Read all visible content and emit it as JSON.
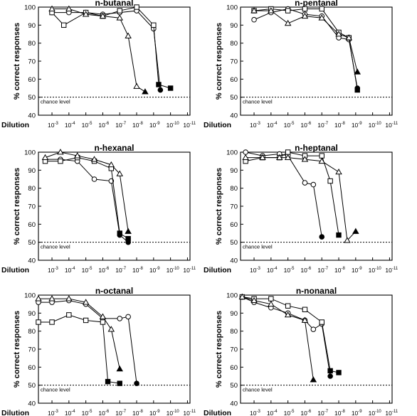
{
  "xaxis_label": "Dilution",
  "yaxis_label": "% correct responses",
  "chance_label": "chance level",
  "chart_data": [
    {
      "type": "line",
      "title": "n-butanal",
      "xlabel": "Dilution",
      "ylabel": "% correct responses",
      "ylim": [
        40,
        100
      ],
      "yticks": [
        "40",
        "50",
        "60",
        "70",
        "80",
        "90",
        "100"
      ],
      "x_ticks": [
        3,
        4,
        5,
        6,
        7,
        8,
        9,
        10,
        11
      ],
      "x_tick_base": "10",
      "x_scale": "log (dilution 10^-n)",
      "chance_level": 50,
      "series": [
        {
          "marker": "circle",
          "x": [
            3,
            4,
            5,
            6,
            7,
            8,
            9,
            9.4
          ],
          "y": [
            97,
            97,
            97,
            96,
            97,
            98,
            88,
            54
          ]
        },
        {
          "marker": "square",
          "x": [
            3,
            3.7,
            5,
            6,
            7,
            8,
            9,
            9.3,
            10
          ],
          "y": [
            97,
            90,
            97,
            95,
            98,
            100,
            90,
            57,
            55
          ]
        },
        {
          "marker": "triangle",
          "x": [
            3,
            4,
            5,
            6,
            7,
            7.5,
            8,
            8.5
          ],
          "y": [
            99,
            99,
            96,
            95,
            94,
            84,
            56,
            53
          ]
        }
      ]
    },
    {
      "type": "line",
      "title": "n-pentanal",
      "xlabel": "Dilution",
      "ylabel": "% correct responses",
      "ylim": [
        40,
        100
      ],
      "yticks": [
        "40",
        "50",
        "60",
        "70",
        "80",
        "90",
        "100"
      ],
      "x_ticks": [
        3,
        4,
        5,
        6,
        7,
        8,
        9,
        10,
        11
      ],
      "x_tick_base": "10",
      "x_scale": "log (dilution 10^-n)",
      "chance_level": 50,
      "series": [
        {
          "marker": "circle",
          "x": [
            3,
            4,
            5,
            6,
            7,
            8,
            8.6,
            9.1
          ],
          "y": [
            93,
            97,
            99,
            96,
            95,
            83,
            82,
            55
          ]
        },
        {
          "marker": "square",
          "x": [
            3,
            4,
            5,
            6,
            7,
            8,
            8.6,
            9.1
          ],
          "y": [
            98,
            99,
            98,
            99,
            99,
            86,
            83,
            54
          ]
        },
        {
          "marker": "triangle",
          "x": [
            3,
            4,
            5,
            6,
            7,
            8,
            8.6,
            9.1
          ],
          "y": [
            98,
            98,
            91,
            95,
            94,
            85,
            83,
            64
          ]
        }
      ]
    },
    {
      "type": "line",
      "title": "n-hexanal",
      "xlabel": "Dilution",
      "ylabel": "% correct responses",
      "ylim": [
        40,
        100
      ],
      "yticks": [
        "40",
        "50",
        "60",
        "70",
        "80",
        "90",
        "100"
      ],
      "x_ticks": [
        3,
        4,
        5,
        6,
        7,
        8,
        9,
        10,
        11
      ],
      "x_tick_base": "10",
      "x_scale": "log (dilution 10^-n)",
      "chance_level": 50,
      "series": [
        {
          "marker": "circle",
          "x": [
            2.6,
            3.5,
            4.5,
            5.5,
            6.5,
            7,
            7.5
          ],
          "y": [
            96,
            96,
            95,
            85,
            84,
            54,
            50
          ]
        },
        {
          "marker": "square",
          "x": [
            2.6,
            3.5,
            4.5,
            5.5,
            6.5,
            7,
            7.5
          ],
          "y": [
            95,
            95,
            97,
            95,
            91,
            55,
            52
          ]
        },
        {
          "marker": "triangle",
          "x": [
            2.6,
            3.5,
            4.5,
            5.5,
            6.5,
            7,
            7.5
          ],
          "y": [
            97,
            100,
            98,
            96,
            93,
            88,
            56
          ]
        }
      ]
    },
    {
      "type": "line",
      "title": "n-heptanal",
      "xlabel": "Dilution",
      "ylabel": "% correct responses",
      "ylim": [
        40,
        100
      ],
      "yticks": [
        "40",
        "50",
        "60",
        "70",
        "80",
        "90",
        "100"
      ],
      "x_ticks": [
        3,
        4,
        5,
        6,
        7,
        8,
        9,
        10,
        11
      ],
      "x_tick_base": "10",
      "x_scale": "log (dilution 10^-n)",
      "chance_level": 50,
      "series": [
        {
          "marker": "circle",
          "x": [
            2.5,
            3.5,
            4.5,
            5,
            6,
            6.5,
            7
          ],
          "y": [
            100,
            98,
            99,
            98,
            83,
            82,
            53
          ]
        },
        {
          "marker": "square",
          "x": [
            2.5,
            3.5,
            4.5,
            5,
            6,
            7,
            7.5,
            8
          ],
          "y": [
            95,
            97,
            97,
            100,
            98,
            98,
            84,
            54
          ]
        },
        {
          "marker": "triangle",
          "x": [
            2.5,
            3.5,
            4.5,
            5,
            6,
            7,
            8,
            8.5,
            9
          ],
          "y": [
            97,
            97,
            97,
            97,
            96,
            95,
            89,
            51,
            56
          ]
        }
      ]
    },
    {
      "type": "line",
      "title": "n-octanal",
      "xlabel": "Dilution",
      "ylabel": "% correct responses",
      "ylim": [
        40,
        100
      ],
      "yticks": [
        "40",
        "50",
        "60",
        "70",
        "80",
        "90",
        "100"
      ],
      "x_ticks": [
        3,
        4,
        5,
        6,
        7,
        8,
        9,
        10,
        11
      ],
      "x_tick_base": "10",
      "x_scale": "log (dilution 10^-n)",
      "chance_level": 50,
      "series": [
        {
          "marker": "circle",
          "x": [
            2.2,
            3,
            4,
            5,
            6,
            7,
            7.5,
            8
          ],
          "y": [
            96,
            96,
            97,
            95,
            87,
            87,
            88,
            51
          ]
        },
        {
          "marker": "square",
          "x": [
            2.2,
            3,
            4,
            5,
            6,
            6.3,
            7
          ],
          "y": [
            85,
            85,
            89,
            86,
            85,
            52,
            51
          ]
        },
        {
          "marker": "triangle",
          "x": [
            2.2,
            3,
            4,
            5,
            6,
            6.5,
            7
          ],
          "y": [
            98,
            98,
            98,
            96,
            88,
            81,
            59
          ]
        }
      ]
    },
    {
      "type": "line",
      "title": "n-nonanal",
      "xlabel": "Dilution",
      "ylabel": "% correct responses",
      "ylim": [
        40,
        100
      ],
      "yticks": [
        "40",
        "50",
        "60",
        "70",
        "80",
        "90",
        "100"
      ],
      "x_ticks": [
        3,
        4,
        5,
        6,
        7,
        8,
        9,
        10,
        11
      ],
      "x_tick_base": "10",
      "x_scale": "log (dilution 10^-n)",
      "chance_level": 50,
      "series": [
        {
          "marker": "circle",
          "x": [
            2.3,
            3,
            4,
            5,
            6,
            6.5,
            7,
            7.5
          ],
          "y": [
            99,
            96,
            93,
            90,
            86,
            81,
            84,
            55
          ]
        },
        {
          "marker": "square",
          "x": [
            2.3,
            3,
            4,
            5,
            6,
            7,
            7.5,
            8
          ],
          "y": [
            99,
            98,
            98,
            94,
            92,
            85,
            58,
            57
          ]
        },
        {
          "marker": "triangle",
          "x": [
            2.3,
            3,
            4,
            5,
            6,
            6.5
          ],
          "y": [
            99,
            97,
            95,
            89,
            86,
            53
          ]
        }
      ]
    }
  ]
}
